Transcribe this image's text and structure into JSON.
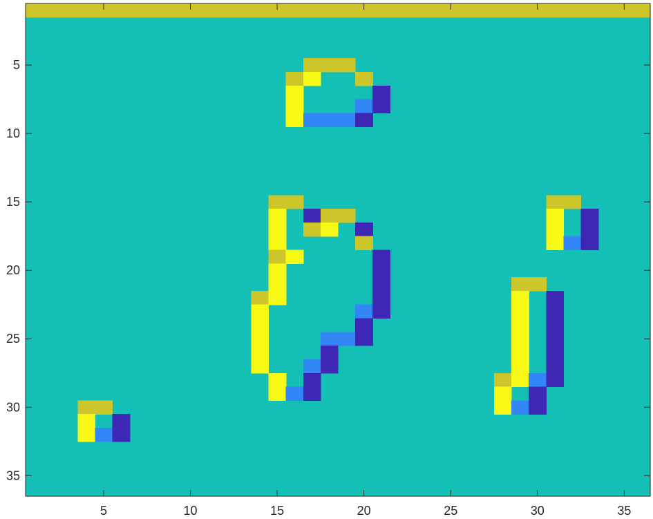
{
  "chart_data": {
    "type": "heatmap",
    "title": "",
    "xlabel": "",
    "ylabel": "",
    "xlim": [
      0.5,
      36.5
    ],
    "ylim": [
      0.5,
      36.5
    ],
    "y_direction": "reversed",
    "grid": false,
    "legend": "none",
    "xticks": [
      5,
      10,
      15,
      20,
      25,
      30,
      35
    ],
    "yticks": [
      5,
      10,
      15,
      20,
      25,
      30,
      35
    ],
    "xtick_labels": [
      "5",
      "10",
      "15",
      "20",
      "25",
      "30",
      "35"
    ],
    "ytick_labels": [
      "5",
      "10",
      "15",
      "20",
      "25",
      "30",
      "35"
    ],
    "background_value": 0,
    "colormap": {
      "-2": "#3d27b4",
      "-1": "#3386f6",
      "0": "#14bfb6",
      "1": "#cdc62a",
      "2": "#f9f916"
    },
    "frame_color": "#262626",
    "cells": [
      {
        "x": 1,
        "y": 1,
        "v": 1
      },
      {
        "x": 2,
        "y": 1,
        "v": 1
      },
      {
        "x": 3,
        "y": 1,
        "v": 1
      },
      {
        "x": 4,
        "y": 1,
        "v": 1
      },
      {
        "x": 5,
        "y": 1,
        "v": 1
      },
      {
        "x": 6,
        "y": 1,
        "v": 1
      },
      {
        "x": 7,
        "y": 1,
        "v": 1
      },
      {
        "x": 8,
        "y": 1,
        "v": 1
      },
      {
        "x": 9,
        "y": 1,
        "v": 1
      },
      {
        "x": 10,
        "y": 1,
        "v": 1
      },
      {
        "x": 11,
        "y": 1,
        "v": 1
      },
      {
        "x": 12,
        "y": 1,
        "v": 1
      },
      {
        "x": 13,
        "y": 1,
        "v": 1
      },
      {
        "x": 14,
        "y": 1,
        "v": 1
      },
      {
        "x": 15,
        "y": 1,
        "v": 1
      },
      {
        "x": 16,
        "y": 1,
        "v": 1
      },
      {
        "x": 17,
        "y": 1,
        "v": 1
      },
      {
        "x": 18,
        "y": 1,
        "v": 1
      },
      {
        "x": 19,
        "y": 1,
        "v": 1
      },
      {
        "x": 20,
        "y": 1,
        "v": 1
      },
      {
        "x": 21,
        "y": 1,
        "v": 1
      },
      {
        "x": 22,
        "y": 1,
        "v": 1
      },
      {
        "x": 23,
        "y": 1,
        "v": 1
      },
      {
        "x": 24,
        "y": 1,
        "v": 1
      },
      {
        "x": 25,
        "y": 1,
        "v": 1
      },
      {
        "x": 26,
        "y": 1,
        "v": 1
      },
      {
        "x": 27,
        "y": 1,
        "v": 1
      },
      {
        "x": 28,
        "y": 1,
        "v": 1
      },
      {
        "x": 29,
        "y": 1,
        "v": 1
      },
      {
        "x": 30,
        "y": 1,
        "v": 1
      },
      {
        "x": 31,
        "y": 1,
        "v": 1
      },
      {
        "x": 32,
        "y": 1,
        "v": 1
      },
      {
        "x": 33,
        "y": 1,
        "v": 1
      },
      {
        "x": 34,
        "y": 1,
        "v": 1
      },
      {
        "x": 35,
        "y": 1,
        "v": 1
      },
      {
        "x": 36,
        "y": 1,
        "v": 1
      },
      {
        "x": 17,
        "y": 5,
        "v": 1
      },
      {
        "x": 18,
        "y": 5,
        "v": 1
      },
      {
        "x": 19,
        "y": 5,
        "v": 1
      },
      {
        "x": 16,
        "y": 6,
        "v": 1
      },
      {
        "x": 17,
        "y": 6,
        "v": 2
      },
      {
        "x": 20,
        "y": 6,
        "v": 1
      },
      {
        "x": 16,
        "y": 7,
        "v": 2
      },
      {
        "x": 21,
        "y": 7,
        "v": -2
      },
      {
        "x": 16,
        "y": 8,
        "v": 2
      },
      {
        "x": 20,
        "y": 8,
        "v": -1
      },
      {
        "x": 21,
        "y": 8,
        "v": -2
      },
      {
        "x": 16,
        "y": 9,
        "v": 2
      },
      {
        "x": 17,
        "y": 9,
        "v": -1
      },
      {
        "x": 18,
        "y": 9,
        "v": -1
      },
      {
        "x": 19,
        "y": 9,
        "v": -1
      },
      {
        "x": 20,
        "y": 9,
        "v": -2
      },
      {
        "x": 15,
        "y": 15,
        "v": 1
      },
      {
        "x": 16,
        "y": 15,
        "v": 1
      },
      {
        "x": 15,
        "y": 16,
        "v": 2
      },
      {
        "x": 17,
        "y": 16,
        "v": -2
      },
      {
        "x": 18,
        "y": 16,
        "v": 1
      },
      {
        "x": 19,
        "y": 16,
        "v": 1
      },
      {
        "x": 15,
        "y": 17,
        "v": 2
      },
      {
        "x": 17,
        "y": 17,
        "v": 1
      },
      {
        "x": 18,
        "y": 17,
        "v": 2
      },
      {
        "x": 20,
        "y": 17,
        "v": -2
      },
      {
        "x": 15,
        "y": 18,
        "v": 2
      },
      {
        "x": 20,
        "y": 18,
        "v": 1
      },
      {
        "x": 15,
        "y": 19,
        "v": 1
      },
      {
        "x": 16,
        "y": 19,
        "v": 2
      },
      {
        "x": 21,
        "y": 19,
        "v": -2
      },
      {
        "x": 15,
        "y": 20,
        "v": 2
      },
      {
        "x": 21,
        "y": 20,
        "v": -2
      },
      {
        "x": 15,
        "y": 21,
        "v": 2
      },
      {
        "x": 21,
        "y": 21,
        "v": -2
      },
      {
        "x": 14,
        "y": 22,
        "v": 1
      },
      {
        "x": 15,
        "y": 22,
        "v": 2
      },
      {
        "x": 21,
        "y": 22,
        "v": -2
      },
      {
        "x": 14,
        "y": 23,
        "v": 2
      },
      {
        "x": 20,
        "y": 23,
        "v": -1
      },
      {
        "x": 21,
        "y": 23,
        "v": -2
      },
      {
        "x": 14,
        "y": 24,
        "v": 2
      },
      {
        "x": 20,
        "y": 24,
        "v": -2
      },
      {
        "x": 14,
        "y": 25,
        "v": 2
      },
      {
        "x": 18,
        "y": 25,
        "v": -1
      },
      {
        "x": 19,
        "y": 25,
        "v": -1
      },
      {
        "x": 20,
        "y": 25,
        "v": -2
      },
      {
        "x": 14,
        "y": 26,
        "v": 2
      },
      {
        "x": 18,
        "y": 26,
        "v": -2
      },
      {
        "x": 14,
        "y": 27,
        "v": 2
      },
      {
        "x": 17,
        "y": 27,
        "v": -1
      },
      {
        "x": 18,
        "y": 27,
        "v": -2
      },
      {
        "x": 15,
        "y": 28,
        "v": 2
      },
      {
        "x": 17,
        "y": 28,
        "v": -2
      },
      {
        "x": 15,
        "y": 29,
        "v": 2
      },
      {
        "x": 16,
        "y": 29,
        "v": -1
      },
      {
        "x": 17,
        "y": 29,
        "v": -2
      },
      {
        "x": 31,
        "y": 15,
        "v": 1
      },
      {
        "x": 32,
        "y": 15,
        "v": 1
      },
      {
        "x": 31,
        "y": 16,
        "v": 2
      },
      {
        "x": 33,
        "y": 16,
        "v": -2
      },
      {
        "x": 31,
        "y": 17,
        "v": 2
      },
      {
        "x": 33,
        "y": 17,
        "v": -2
      },
      {
        "x": 31,
        "y": 18,
        "v": 2
      },
      {
        "x": 32,
        "y": 18,
        "v": -1
      },
      {
        "x": 33,
        "y": 18,
        "v": -2
      },
      {
        "x": 29,
        "y": 21,
        "v": 1
      },
      {
        "x": 30,
        "y": 21,
        "v": 1
      },
      {
        "x": 29,
        "y": 22,
        "v": 2
      },
      {
        "x": 31,
        "y": 22,
        "v": -2
      },
      {
        "x": 29,
        "y": 23,
        "v": 2
      },
      {
        "x": 31,
        "y": 23,
        "v": -2
      },
      {
        "x": 29,
        "y": 24,
        "v": 2
      },
      {
        "x": 31,
        "y": 24,
        "v": -2
      },
      {
        "x": 29,
        "y": 25,
        "v": 2
      },
      {
        "x": 31,
        "y": 25,
        "v": -2
      },
      {
        "x": 29,
        "y": 26,
        "v": 2
      },
      {
        "x": 31,
        "y": 26,
        "v": -2
      },
      {
        "x": 29,
        "y": 27,
        "v": 2
      },
      {
        "x": 31,
        "y": 27,
        "v": -2
      },
      {
        "x": 28,
        "y": 28,
        "v": 1
      },
      {
        "x": 29,
        "y": 28,
        "v": 2
      },
      {
        "x": 30,
        "y": 28,
        "v": -1
      },
      {
        "x": 31,
        "y": 28,
        "v": -2
      },
      {
        "x": 28,
        "y": 29,
        "v": 2
      },
      {
        "x": 30,
        "y": 29,
        "v": -2
      },
      {
        "x": 28,
        "y": 30,
        "v": 2
      },
      {
        "x": 29,
        "y": 30,
        "v": -1
      },
      {
        "x": 30,
        "y": 30,
        "v": -2
      },
      {
        "x": 4,
        "y": 30,
        "v": 1
      },
      {
        "x": 5,
        "y": 30,
        "v": 1
      },
      {
        "x": 4,
        "y": 31,
        "v": 2
      },
      {
        "x": 6,
        "y": 31,
        "v": -2
      },
      {
        "x": 4,
        "y": 32,
        "v": 2
      },
      {
        "x": 5,
        "y": 32,
        "v": -1
      },
      {
        "x": 6,
        "y": 32,
        "v": -2
      }
    ]
  }
}
